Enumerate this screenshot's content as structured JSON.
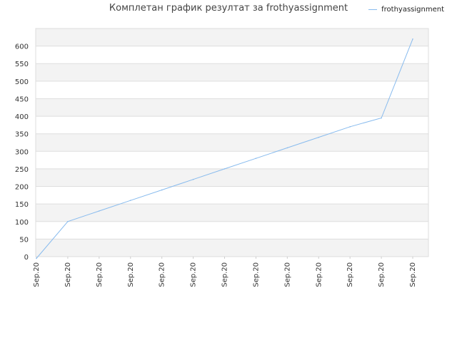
{
  "chart_data": {
    "type": "line",
    "title": "Комплетан график резултат за frothyassignment",
    "xlabel": "",
    "ylabel": "",
    "categories": [
      "Sep.20",
      "Sep.20",
      "Sep.20",
      "Sep.20",
      "Sep.20",
      "Sep.20",
      "Sep.20",
      "Sep.20",
      "Sep.20",
      "Sep.20",
      "Sep.20",
      "Sep.20",
      "Sep.20"
    ],
    "series": [
      {
        "name": "frothyassignment",
        "values": [
          -5,
          100,
          130,
          160,
          190,
          220,
          250,
          280,
          310,
          340,
          370,
          395,
          620
        ],
        "color": "#88bbee"
      }
    ],
    "ylim": [
      0,
      650
    ],
    "yticks": [
      0,
      50,
      100,
      150,
      200,
      250,
      300,
      350,
      400,
      450,
      500,
      550,
      600
    ],
    "grid": true,
    "legend_position": "top-right",
    "band_colors": [
      "#f3f3f3",
      "#ffffff"
    ]
  }
}
